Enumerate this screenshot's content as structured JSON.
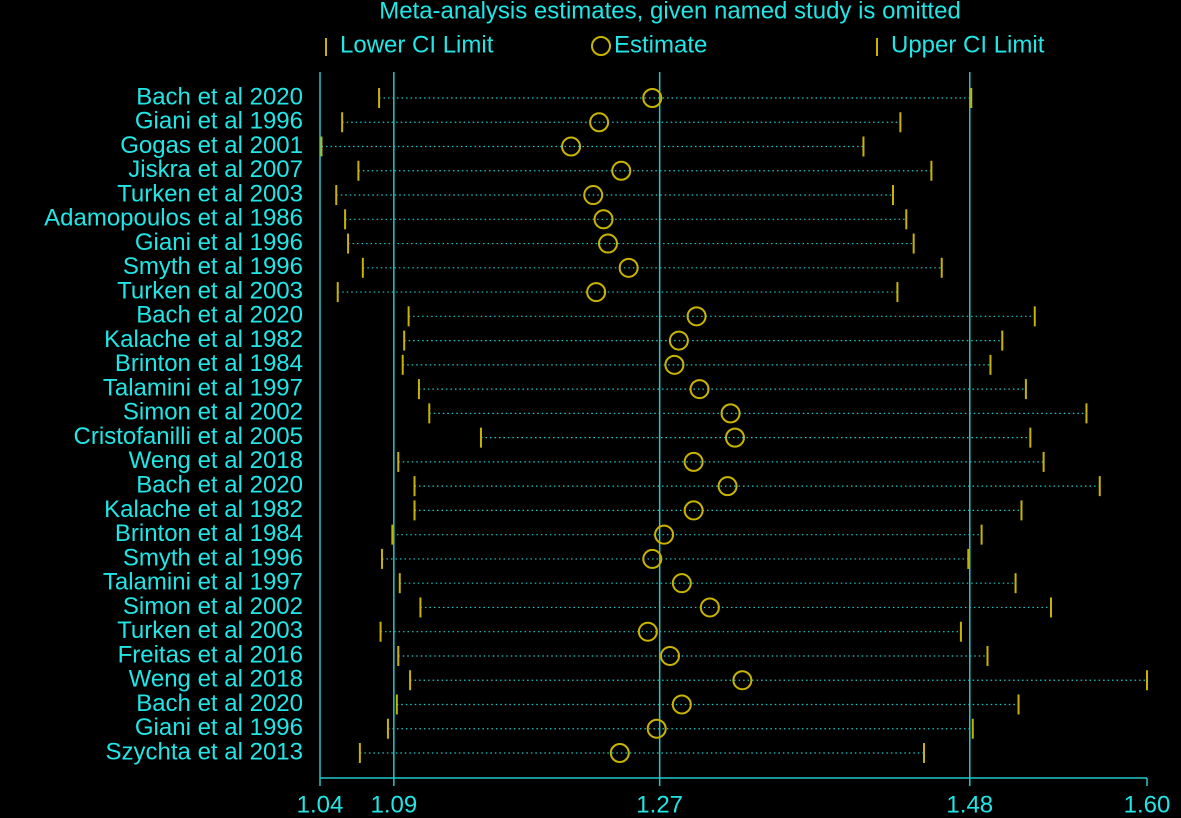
{
  "chart_data": {
    "type": "forest",
    "title": "Meta-analysis estimates, given named study is omitted",
    "categories": [
      "Bach et al 2020",
      "Giani et al 1996",
      "Gogas et al 2001",
      "Jiskra et al 2007",
      "Turken et al 2003",
      "Adamopoulos et al 1986",
      "Giani et al 1996",
      "Smyth et al 1996",
      "Turken et al 2003",
      "Bach et al 2020",
      "Kalache et al 1982",
      "Brinton et al 1984",
      "Talamini et al 1997",
      "Simon et al 2002",
      "Cristofanilli et al 2005",
      "Weng et al 2018",
      "Bach et al 2020",
      "Kalache et al 1982",
      "Brinton et al 1984",
      "Smyth et al 1996",
      "Talamini et al 1997",
      "Simon et al 2002",
      "Turken et al 2003",
      "Freitas et al 2016",
      "Weng et al 2018",
      "Bach et al 2020",
      "Giani et al 1996",
      "Szychta et al 2013"
    ],
    "series": [
      {
        "name": "Lower CI Limit",
        "color": "#c8b400",
        "values": [
          1.08,
          1.055,
          1.041,
          1.066,
          1.051,
          1.057,
          1.059,
          1.069,
          1.052,
          1.1,
          1.097,
          1.096,
          1.107,
          1.114,
          1.149,
          1.093,
          1.104,
          1.104,
          1.089,
          1.082,
          1.094,
          1.108,
          1.081,
          1.093,
          1.101,
          1.092,
          1.086,
          1.067
        ]
      },
      {
        "name": "Estimate",
        "color": "#c8b400",
        "values": [
          1.265,
          1.229,
          1.21,
          1.244,
          1.225,
          1.232,
          1.235,
          1.249,
          1.227,
          1.295,
          1.283,
          1.28,
          1.297,
          1.318,
          1.321,
          1.293,
          1.316,
          1.293,
          1.273,
          1.265,
          1.285,
          1.304,
          1.262,
          1.277,
          1.326,
          1.285,
          1.268,
          1.243
        ]
      },
      {
        "name": "Upper CI Limit",
        "color": "#c8b400",
        "values": [
          1.481,
          1.433,
          1.408,
          1.454,
          1.428,
          1.437,
          1.442,
          1.461,
          1.431,
          1.524,
          1.502,
          1.494,
          1.518,
          1.559,
          1.521,
          1.53,
          1.568,
          1.515,
          1.488,
          1.479,
          1.511,
          1.535,
          1.474,
          1.492,
          1.6,
          1.513,
          1.482,
          1.449
        ]
      }
    ],
    "xlim": [
      1.04,
      1.6
    ],
    "xticks": [
      1.04,
      1.09,
      1.27,
      1.48,
      {
        "value": 1.6,
        "label": "1.60"
      }
    ],
    "grid": true,
    "text_color": "#22e6e6",
    "line_color": "#22c8c8"
  }
}
